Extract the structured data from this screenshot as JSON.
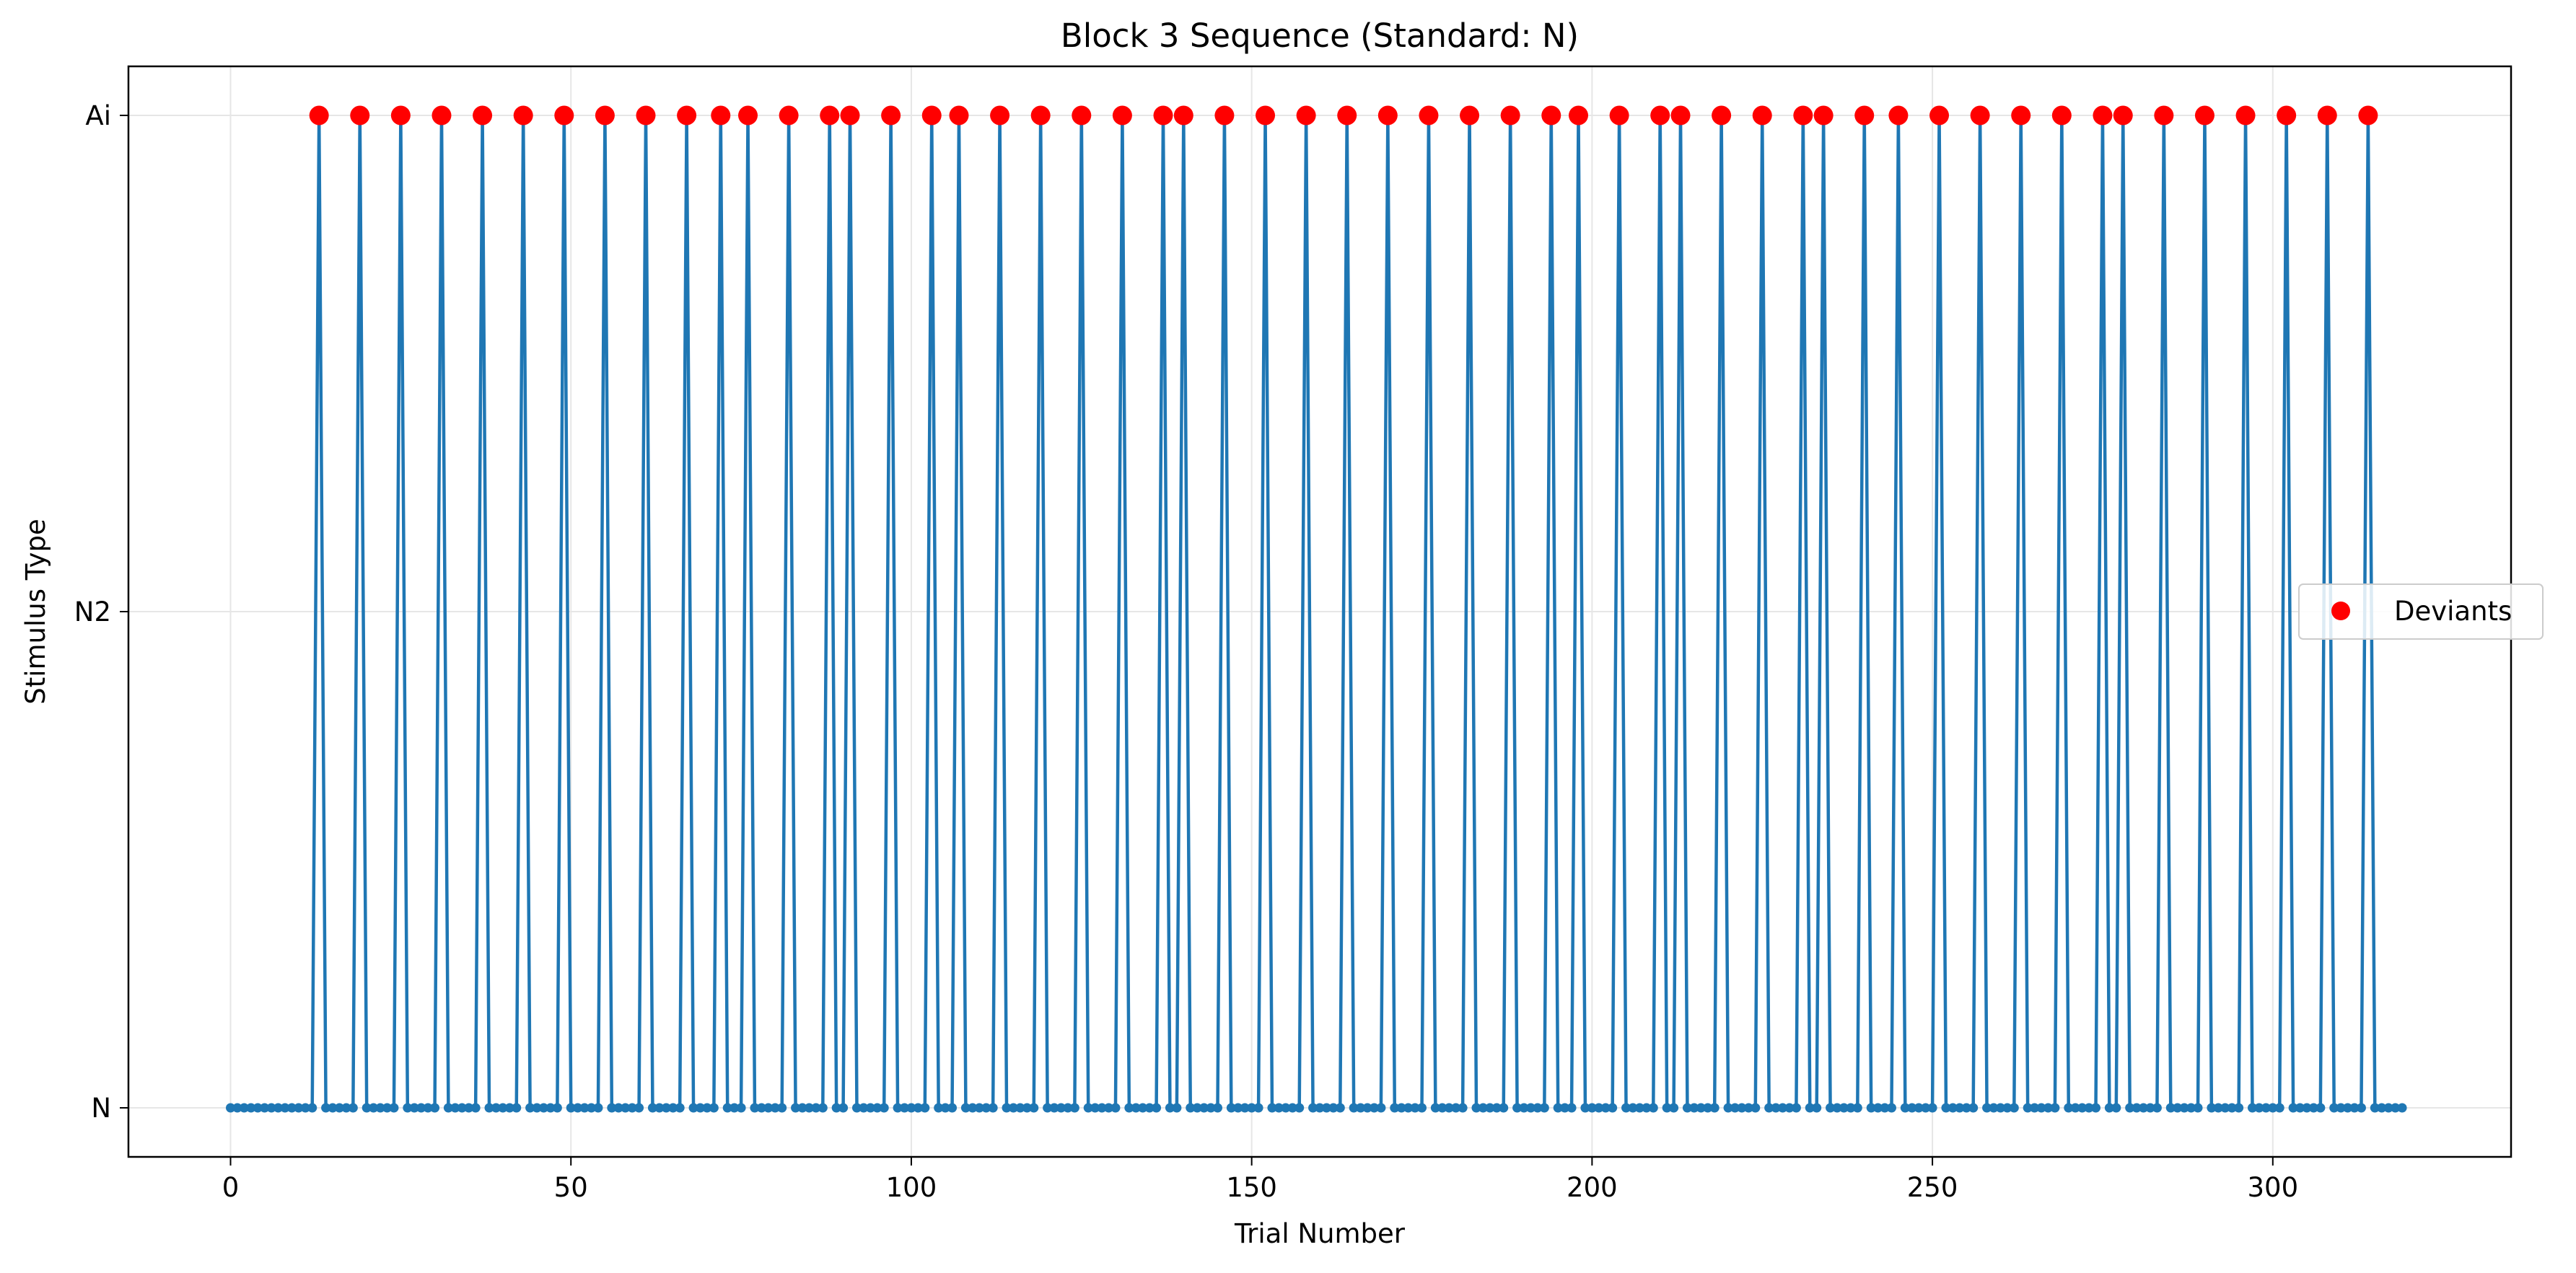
{
  "chart_data": {
    "type": "line",
    "title": "Block 3 Sequence (Standard: N)",
    "xlabel": "Trial Number",
    "ylabel": "Stimulus Type",
    "xlim": [
      -15,
      335
    ],
    "x_ticks": [
      0,
      50,
      100,
      150,
      200,
      250,
      300
    ],
    "y_categories": [
      "N",
      "N2",
      "Ai"
    ],
    "grid": true,
    "legend_position": "center-right",
    "n_trials": 320,
    "series": [
      {
        "kind": "sequence",
        "color": "#1f77b4",
        "standard_level": "N",
        "deviant_level": "Ai",
        "deviant_trials": [
          13,
          19,
          25,
          31,
          37,
          43,
          49,
          55,
          61,
          67,
          72,
          76,
          82,
          88,
          91,
          97,
          103,
          107,
          113,
          119,
          125,
          131,
          137,
          140,
          146,
          152,
          158,
          164,
          170,
          176,
          182,
          188,
          194,
          198,
          204,
          210,
          213,
          219,
          225,
          231,
          234,
          240,
          245,
          251,
          257,
          263,
          269,
          275,
          278,
          284,
          290,
          296,
          302,
          308,
          314
        ]
      },
      {
        "name": "Deviants",
        "kind": "markers",
        "color": "#ff0000",
        "level": "Ai"
      }
    ]
  }
}
